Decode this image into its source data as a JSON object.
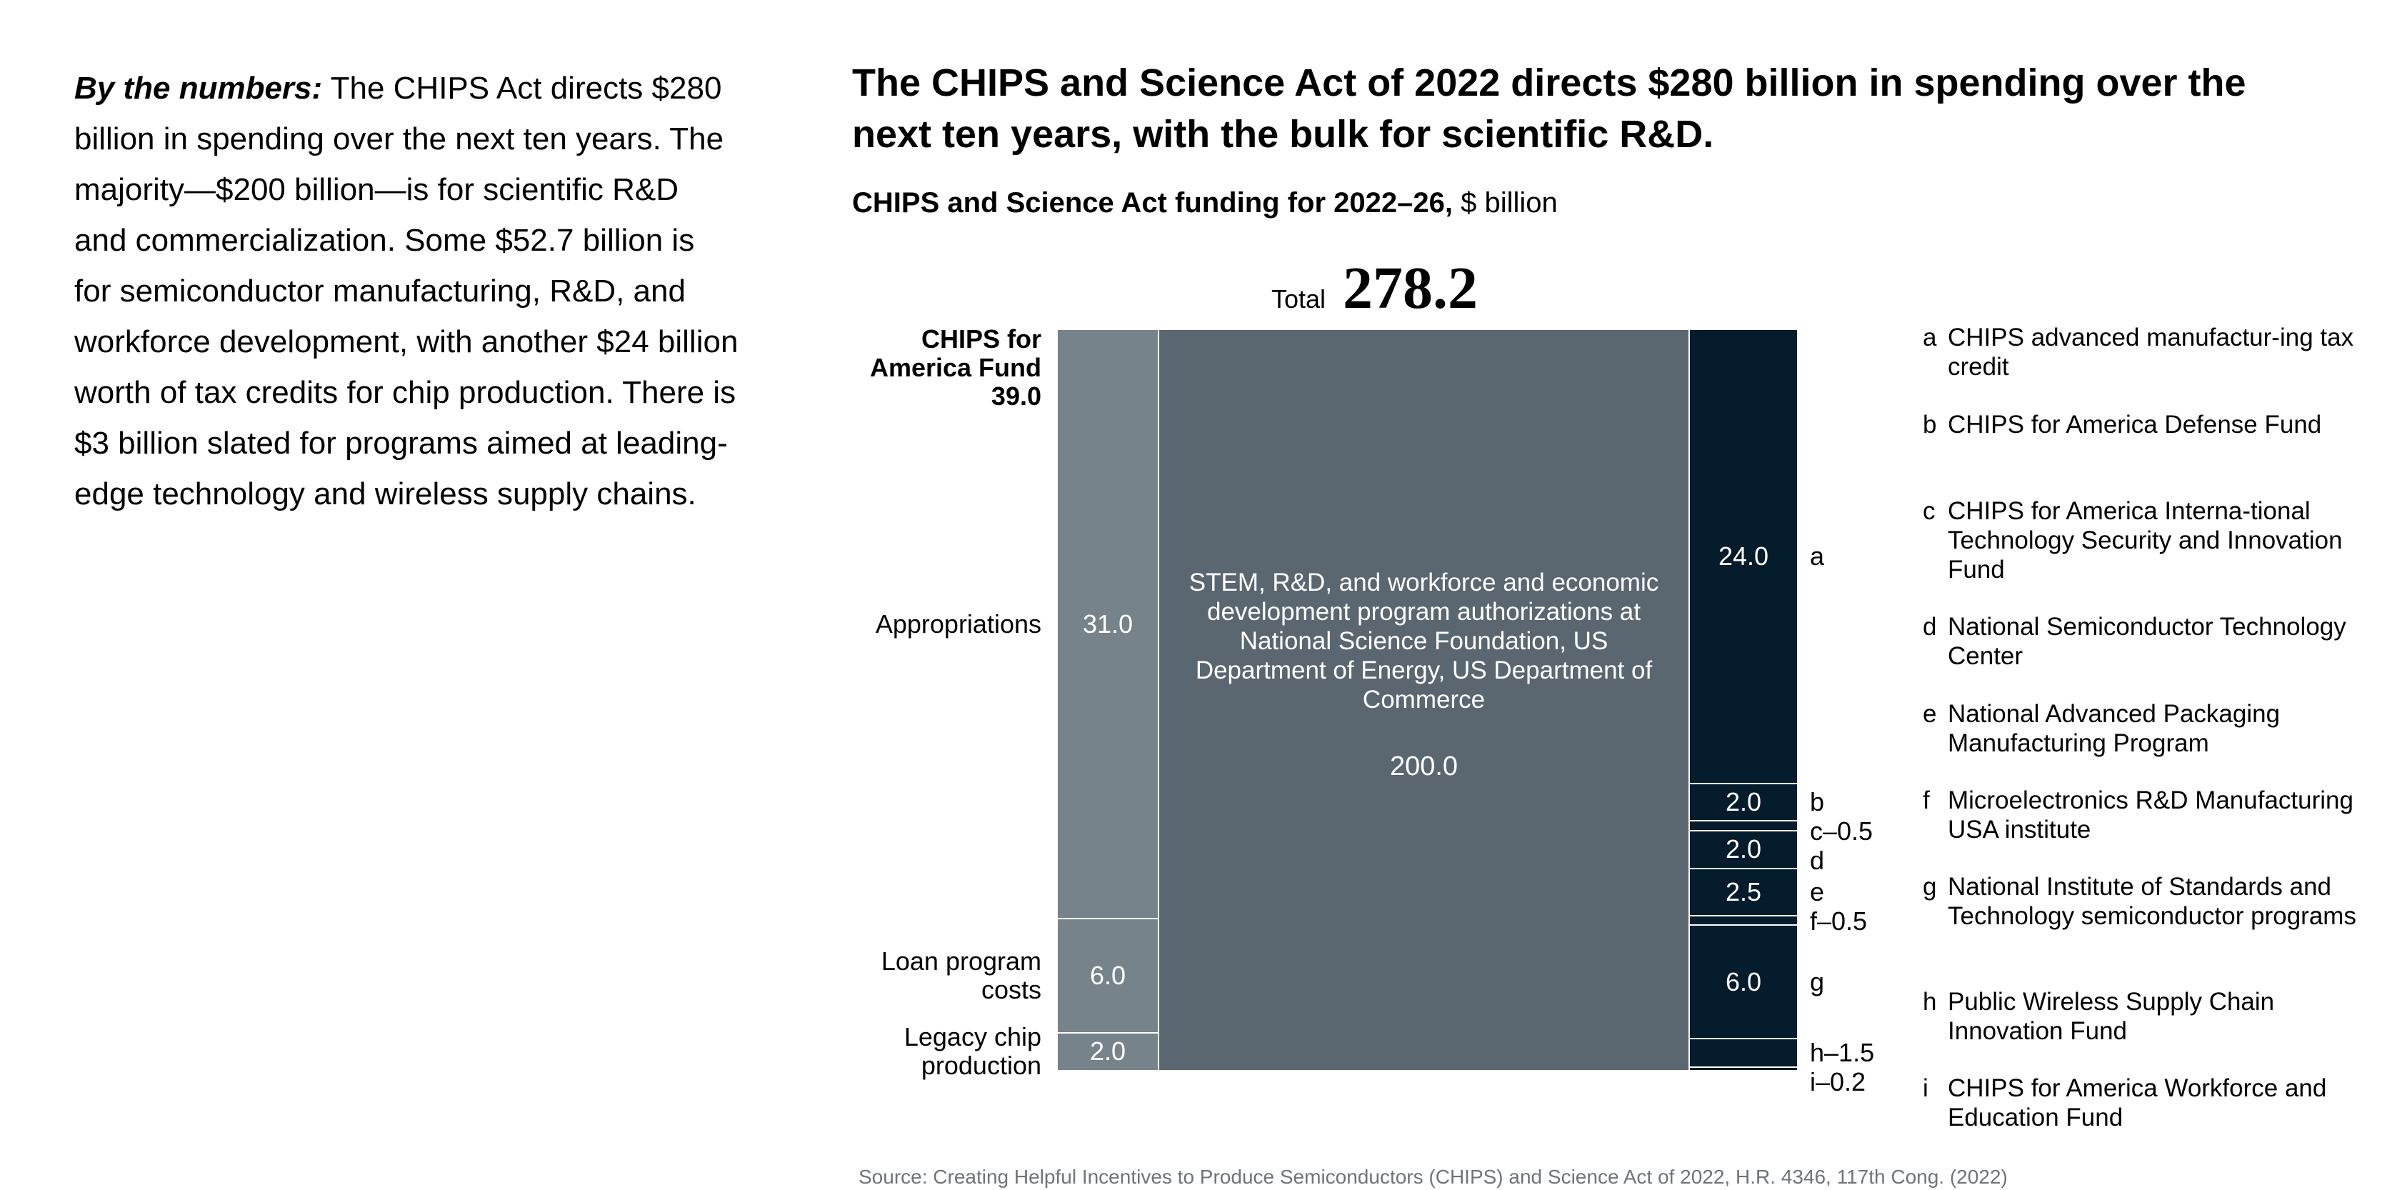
{
  "intro": {
    "lead": "By the numbers:",
    "text": " The CHIPS Act directs $280 billion in spending over the next ten years. The majority—$200 billion—is for scientific R&D and commercialization. Some $52.7 billion is for semiconductor manufacturing, R&D, and workforce development, with another $24 billion worth of tax credits for chip production. There is $3 billion slated for programs aimed at leading-edge technology and wireless supply chains."
  },
  "colors": {
    "left": "#77838a",
    "middle": "#5a6670",
    "right": "#051c2c",
    "divider": "#ffffff"
  },
  "chart_data": {
    "type": "mekko",
    "title": "The CHIPS and Science Act of 2022 directs $280 billion in spending over the next ten years, with the bulk for scientific R&D.",
    "subtitle_bold": "CHIPS and Science Act funding for 2022–26,",
    "subtitle_unit": " $ billion",
    "total_label": "Total",
    "total_value": "278.2",
    "fund_label_line1": "CHIPS for",
    "fund_label_line2": "America Fund",
    "fund_total": "39.0",
    "left": {
      "segments": [
        {
          "name": "Appropriations",
          "value": 31.0,
          "display": "31.0"
        },
        {
          "name": "Loan program costs",
          "value": 6.0,
          "display": "6.0"
        },
        {
          "name": "Legacy chip production",
          "value": 2.0,
          "display": "2.0"
        }
      ]
    },
    "middle": {
      "description": "STEM, R&D, and workforce and economic development program authorizations at National Science Foundation, US Department of Energy, US Department of Commerce",
      "value": 200.0,
      "display": "200.0"
    },
    "right": {
      "segments": [
        {
          "key": "a",
          "value": 24.0,
          "display": "24.0",
          "label": "a"
        },
        {
          "key": "b",
          "value": 2.0,
          "display": "2.0",
          "label": "b"
        },
        {
          "key": "c",
          "value": 0.5,
          "display": "",
          "label": "c–0.5"
        },
        {
          "key": "d",
          "value": 2.0,
          "display": "2.0",
          "label": "d"
        },
        {
          "key": "e",
          "value": 2.5,
          "display": "2.5",
          "label": "e"
        },
        {
          "key": "f",
          "value": 0.5,
          "display": "",
          "label": "f–0.5"
        },
        {
          "key": "g",
          "value": 6.0,
          "display": "6.0",
          "label": "g"
        },
        {
          "key": "h",
          "value": 1.5,
          "display": "",
          "label": "h–1.5"
        },
        {
          "key": "i",
          "value": 0.2,
          "display": "",
          "label": "i–0.2"
        }
      ]
    },
    "legend": [
      {
        "key": "a",
        "text": "CHIPS advanced manufactur-ing tax credit"
      },
      {
        "key": "b",
        "text": "CHIPS for America Defense Fund"
      },
      {
        "key": "c",
        "text": "CHIPS for America Interna-tional Technology Security and Innovation Fund"
      },
      {
        "key": "d",
        "text": "National Semiconductor Technology Center"
      },
      {
        "key": "e",
        "text": "National Advanced Packaging Manufacturing Program"
      },
      {
        "key": "f",
        "text": "Microelectronics R&D Manufacturing USA institute"
      },
      {
        "key": "g",
        "text": "National Institute of Standards and Technology semiconductor programs"
      },
      {
        "key": "h",
        "text": "Public Wireless Supply Chain Innovation Fund"
      },
      {
        "key": "i",
        "text": "CHIPS for America Workforce and Education Fund"
      }
    ],
    "source": "Source: Creating Helpful Incentives to Produce Semiconductors (CHIPS) and Science Act of 2022, H.R. 4346, 117th Cong. (2022)"
  }
}
